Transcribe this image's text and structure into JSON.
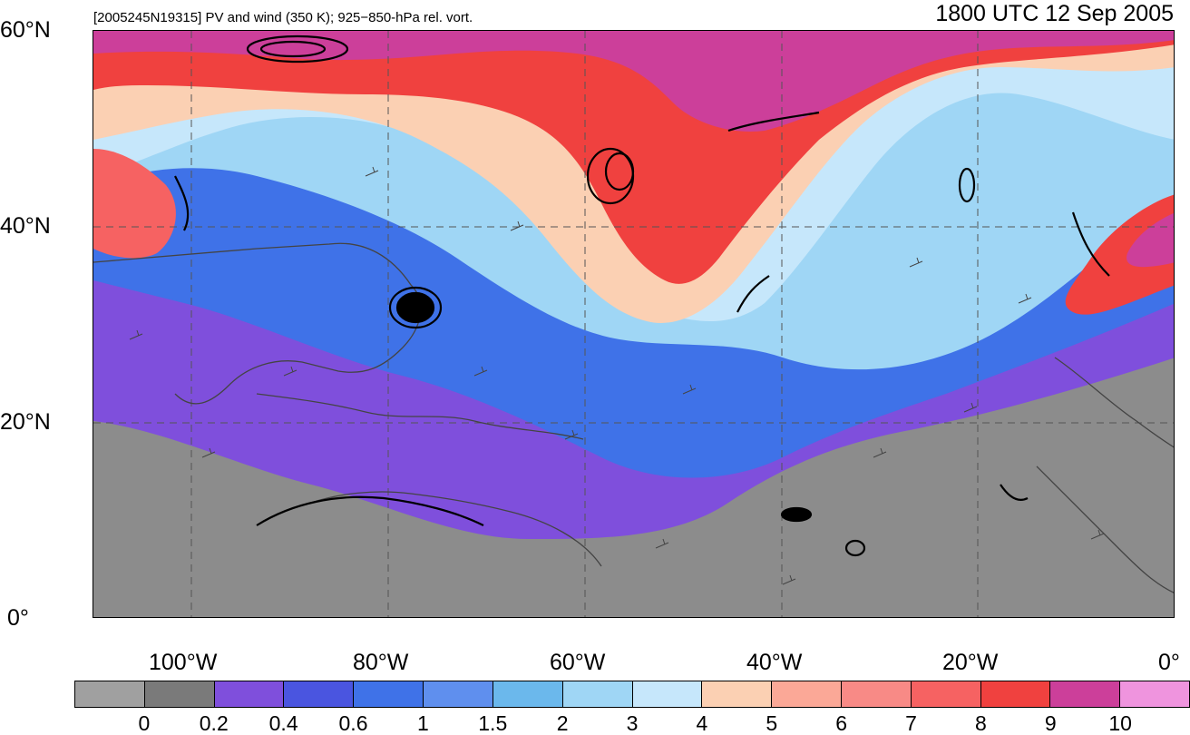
{
  "header": {
    "subtitle": "[2005245N19315] PV and wind (350 K); 925−850-hPa rel. vort.",
    "title": "1800 UTC 12 Sep 2005"
  },
  "axes": {
    "lat_labels": [
      "60°N",
      "40°N",
      "20°N",
      "0°"
    ],
    "lon_labels": [
      "100°W",
      "80°W",
      "60°W",
      "40°W",
      "20°W",
      "0°"
    ]
  },
  "colorbar": {
    "colors": [
      "#a0a0a0",
      "#7a7a7a",
      "#7f4fdc",
      "#4a55e0",
      "#3f72e8",
      "#5f8fee",
      "#6bb8ec",
      "#9fd6f5",
      "#c6e7fb",
      "#fbd0b3",
      "#fba897",
      "#f88a86",
      "#f66262",
      "#f0413f",
      "#cc3f9a",
      "#ef94de"
    ],
    "labels": [
      "0",
      "0.2",
      "0.4",
      "0.6",
      "1",
      "1.5",
      "2",
      "3",
      "4",
      "5",
      "6",
      "7",
      "8",
      "9",
      "10"
    ]
  },
  "colors": {
    "gray_low": "#8c8c8c",
    "purple": "#7f4fdc",
    "blue": "#3f72e8",
    "lightblue": "#9fd6f5",
    "peach": "#fbd0b3",
    "red": "#f0413f",
    "magenta": "#cc3f9a"
  }
}
